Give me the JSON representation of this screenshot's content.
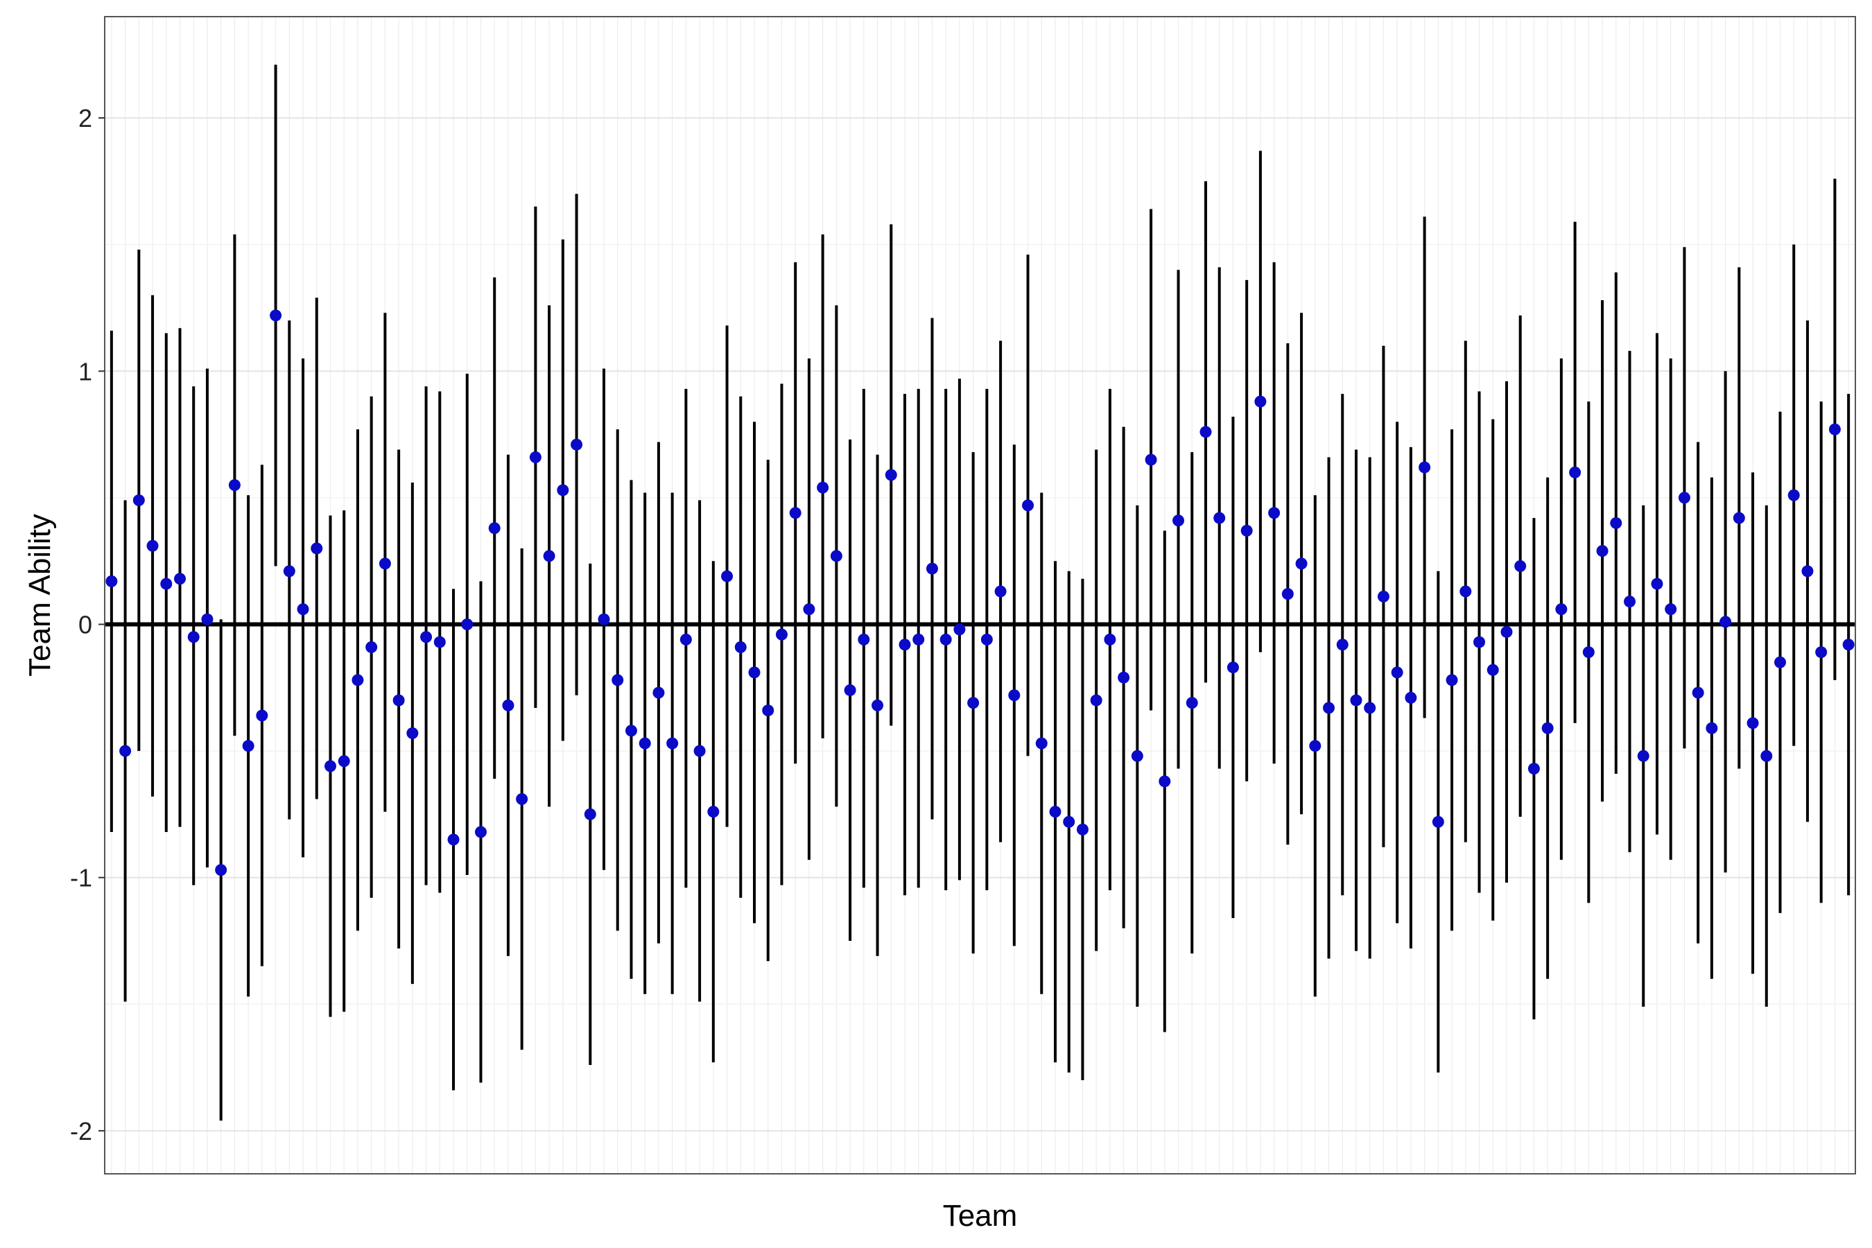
{
  "chart_data": {
    "type": "scatter",
    "subtype": "point-with-error-bars",
    "title": "",
    "xlabel": "Team",
    "ylabel": "Team Ability",
    "ylim": [
      -2.17,
      2.4
    ],
    "yticks": [
      -2,
      -1,
      0,
      1,
      2
    ],
    "x_tick_labels_shown": false,
    "grid": true,
    "reference_line_y": 0,
    "point_color": "#0a0ac8",
    "bar_color": "#000000",
    "series": [
      {
        "values": [
          0.17,
          -0.5,
          0.49,
          0.31,
          0.16,
          0.18,
          -0.05,
          0.02,
          -0.97,
          0.55,
          -0.48,
          -0.36,
          1.22,
          0.21,
          0.06,
          0.3,
          -0.56,
          -0.54,
          -0.22,
          -0.09,
          0.24,
          -0.3,
          -0.43,
          -0.05,
          -0.07,
          -0.85,
          0.0,
          -0.82,
          0.38,
          -0.32,
          -0.69,
          0.66,
          0.27,
          0.53,
          0.71,
          -0.75,
          0.02,
          -0.22,
          -0.42,
          -0.47,
          -0.27,
          -0.47,
          -0.06,
          -0.5,
          -0.74,
          0.19,
          -0.09,
          -0.19,
          -0.34,
          -0.04,
          0.44,
          0.06,
          0.54,
          0.27,
          -0.26,
          -0.06,
          -0.32,
          0.59,
          -0.08,
          -0.06,
          0.22,
          -0.06,
          -0.02,
          -0.31,
          -0.06,
          0.13,
          -0.28,
          0.47,
          -0.47,
          -0.74,
          -0.78,
          -0.81,
          -0.3,
          -0.06,
          -0.21,
          -0.52,
          0.65,
          -0.62,
          0.41,
          -0.31,
          0.76,
          0.42,
          -0.17,
          0.37,
          0.88,
          0.44,
          0.12,
          0.24,
          -0.48,
          -0.33,
          -0.08,
          -0.3,
          -0.33,
          0.11,
          -0.19,
          -0.29,
          0.62,
          -0.78,
          -0.22,
          0.13,
          -0.07,
          -0.18,
          -0.03,
          0.23,
          -0.57,
          -0.41,
          0.06,
          0.6,
          -0.11,
          0.29,
          0.4,
          0.09,
          -0.52,
          0.16,
          0.06,
          0.5,
          -0.27,
          -0.41,
          0.01,
          0.42,
          -0.39,
          -0.52,
          -0.15,
          0.51,
          0.21,
          -0.11,
          0.77,
          -0.08
        ],
        "lower": [
          -0.82,
          -1.49,
          -0.5,
          -0.68,
          -0.82,
          -0.8,
          -1.03,
          -0.96,
          -1.96,
          -0.44,
          -1.47,
          -1.35,
          0.23,
          -0.77,
          -0.92,
          -0.69,
          -1.55,
          -1.53,
          -1.21,
          -1.08,
          -0.74,
          -1.28,
          -1.42,
          -1.03,
          -1.06,
          -1.84,
          -0.99,
          -1.81,
          -0.61,
          -1.31,
          -1.68,
          -0.33,
          -0.72,
          -0.46,
          -0.28,
          -1.74,
          -0.97,
          -1.21,
          -1.4,
          -1.46,
          -1.26,
          -1.46,
          -1.04,
          -1.49,
          -1.73,
          -0.8,
          -1.08,
          -1.18,
          -1.33,
          -1.03,
          -0.55,
          -0.93,
          -0.45,
          -0.72,
          -1.25,
          -1.04,
          -1.31,
          -0.4,
          -1.07,
          -1.04,
          -0.77,
          -1.05,
          -1.01,
          -1.3,
          -1.05,
          -0.86,
          -1.27,
          -0.52,
          -1.46,
          -1.73,
          -1.77,
          -1.8,
          -1.29,
          -1.05,
          -1.2,
          -1.51,
          -0.34,
          -1.61,
          -0.57,
          -1.3,
          -0.23,
          -0.57,
          -1.16,
          -0.62,
          -0.11,
          -0.55,
          -0.87,
          -0.75,
          -1.47,
          -1.32,
          -1.07,
          -1.29,
          -1.32,
          -0.88,
          -1.18,
          -1.28,
          -0.37,
          -1.77,
          -1.21,
          -0.86,
          -1.06,
          -1.17,
          -1.02,
          -0.76,
          -1.56,
          -1.4,
          -0.93,
          -0.39,
          -1.1,
          -0.7,
          -0.59,
          -0.9,
          -1.51,
          -0.83,
          -0.93,
          -0.49,
          -1.26,
          -1.4,
          -0.98,
          -0.57,
          -1.38,
          -1.51,
          -1.14,
          -0.48,
          -0.78,
          -1.1,
          -0.22,
          -1.07
        ],
        "upper": [
          1.16,
          0.49,
          1.48,
          1.3,
          1.15,
          1.17,
          0.94,
          1.01,
          0.02,
          1.54,
          0.51,
          0.63,
          2.21,
          1.2,
          1.05,
          1.29,
          0.43,
          0.45,
          0.77,
          0.9,
          1.23,
          0.69,
          0.56,
          0.94,
          0.92,
          0.14,
          0.99,
          0.17,
          1.37,
          0.67,
          0.3,
          1.65,
          1.26,
          1.52,
          1.7,
          0.24,
          1.01,
          0.77,
          0.57,
          0.52,
          0.72,
          0.52,
          0.93,
          0.49,
          0.25,
          1.18,
          0.9,
          0.8,
          0.65,
          0.95,
          1.43,
          1.05,
          1.54,
          1.26,
          0.73,
          0.93,
          0.67,
          1.58,
          0.91,
          0.93,
          1.21,
          0.93,
          0.97,
          0.68,
          0.93,
          1.12,
          0.71,
          1.46,
          0.52,
          0.25,
          0.21,
          0.18,
          0.69,
          0.93,
          0.78,
          0.47,
          1.64,
          0.37,
          1.4,
          0.68,
          1.75,
          1.41,
          0.82,
          1.36,
          1.87,
          1.43,
          1.11,
          1.23,
          0.51,
          0.66,
          0.91,
          0.69,
          0.66,
          1.1,
          0.8,
          0.7,
          1.61,
          0.21,
          0.77,
          1.12,
          0.92,
          0.81,
          0.96,
          1.22,
          0.42,
          0.58,
          1.05,
          1.59,
          0.88,
          1.28,
          1.39,
          1.08,
          0.47,
          1.15,
          1.05,
          1.49,
          0.72,
          0.58,
          1.0,
          1.41,
          0.6,
          0.47,
          0.84,
          1.5,
          1.2,
          0.88,
          1.76,
          0.91
        ]
      }
    ]
  }
}
